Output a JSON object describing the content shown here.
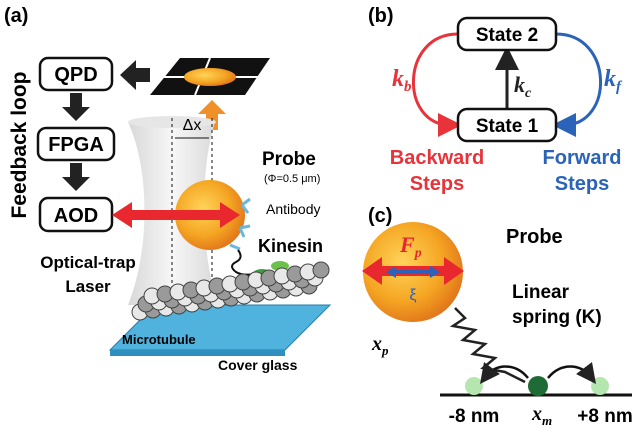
{
  "panel_a": {
    "label": "(a)",
    "boxes": [
      "QPD",
      "FPGA",
      "AOD"
    ],
    "feedback": "Feedback loop",
    "delta": "Δx",
    "probe": "Probe",
    "probe_size": "(Φ=0.5 μm)",
    "antibody": "Antibody",
    "kinesin": "Kinesin",
    "laser": [
      "Optical-trap",
      "Laser"
    ],
    "microtubule": "Microtubule",
    "cover_glass": "Cover glass"
  },
  "panel_b": {
    "label": "(b)",
    "state2": "State 2",
    "state1": "State 1",
    "kb": {
      "symbol": "k",
      "subscript": "b"
    },
    "kc": {
      "symbol": "k",
      "subscript": "c"
    },
    "kf": {
      "symbol": "k",
      "subscript": "f"
    },
    "backward": [
      "Backward",
      "Steps"
    ],
    "forward": [
      "Forward",
      "Steps"
    ]
  },
  "panel_c": {
    "label": "(c)",
    "fp": {
      "symbol": "F",
      "subscript": "p"
    },
    "xi": "ξ",
    "probe": "Probe",
    "xp": {
      "symbol": "x",
      "subscript": "p"
    },
    "spring": [
      "Linear",
      "spring (K)"
    ],
    "minus": "-8 nm",
    "xm": {
      "symbol": "x",
      "subscript": "m"
    },
    "plus": "+8 nm"
  }
}
